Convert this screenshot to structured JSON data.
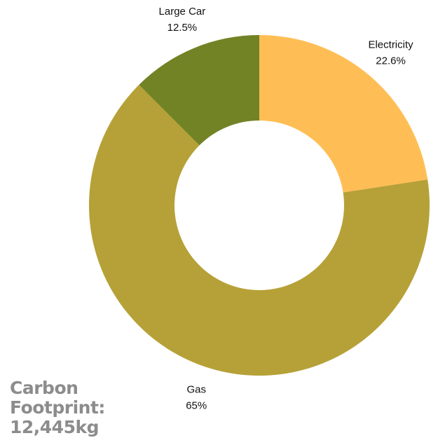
{
  "chart_data": {
    "type": "pie",
    "donut": true,
    "start_angle_deg": 0,
    "direction": "clockwise",
    "slices": [
      {
        "name": "Electricity",
        "value": 22.6,
        "label": "22.6%",
        "color": "#ffbe55"
      },
      {
        "name": "Gas",
        "value": 65,
        "label": "65%",
        "color": "#b6a138"
      },
      {
        "name": "Large Car",
        "value": 12.5,
        "label": "12.5%",
        "color": "#728326"
      }
    ]
  },
  "footprint": {
    "line1": "Carbon",
    "line2": "Footprint:",
    "line3": "12,445kg"
  }
}
